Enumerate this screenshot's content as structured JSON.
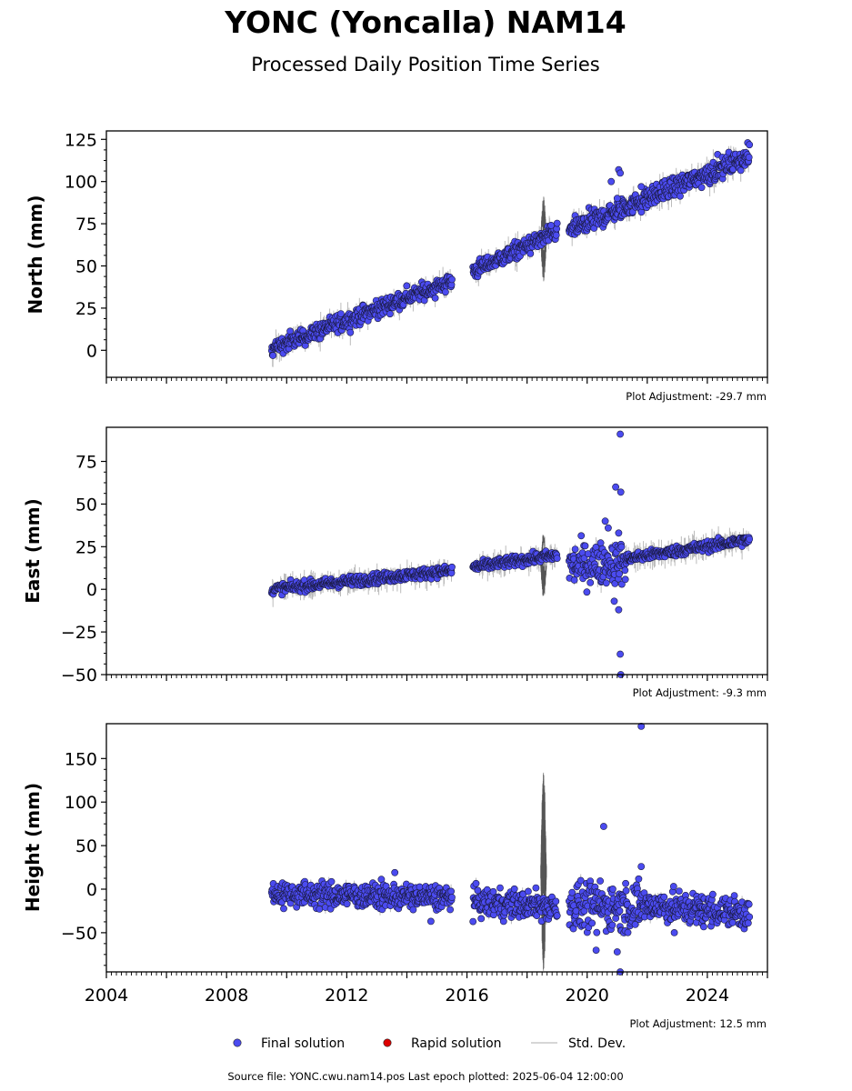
{
  "title": "YONC (Yoncalla) NAM14",
  "subtitle": "Processed Daily Position Time Series",
  "source_note": "Source file: YONC.cwu.nam14.pos  Last epoch plotted: 2025-06-04 12:00:00",
  "legend": {
    "final": "Final solution",
    "rapid": "Rapid solution",
    "std": "Std. Dev."
  },
  "colors": {
    "final": "#4b4bf0",
    "rapid": "#dd0000",
    "std": "#bbbbbb",
    "std_dark": "#555555"
  },
  "x_ticks": [
    "2004",
    "2008",
    "2012",
    "2016",
    "2020",
    "2024"
  ],
  "chart_data": [
    {
      "type": "scatter",
      "panel": "north",
      "ylabel": "North (mm)",
      "adjustment": "Plot Adjustment: -29.7 mm",
      "xlim": [
        2004,
        2026
      ],
      "ylim": [
        -16,
        130
      ],
      "y_ticks": [
        "0",
        "25",
        "50",
        "75",
        "100",
        "125"
      ],
      "y_tick_values": [
        0,
        25,
        50,
        75,
        100,
        125
      ],
      "segments": [
        {
          "x0": 2009.5,
          "x1": 2015.5,
          "y0": 1,
          "y1": 41,
          "spread": 2.5
        },
        {
          "x0": 2016.2,
          "x1": 2019.0,
          "y0": 47,
          "y1": 70,
          "spread": 2.5
        },
        {
          "x0": 2019.4,
          "x1": 2025.4,
          "y0": 71,
          "y1": 115,
          "spread": 3
        }
      ],
      "outliers": [
        [
          2021.05,
          107
        ],
        [
          2021.1,
          105
        ],
        [
          2021.8,
          97
        ],
        [
          2020.8,
          100
        ],
        [
          2021.0,
          90
        ],
        [
          2018.8,
          74
        ]
      ],
      "noisy_bands": [
        {
          "x0": 2018.45,
          "x1": 2018.65,
          "center": 66,
          "half": 26
        }
      ]
    },
    {
      "type": "scatter",
      "panel": "east",
      "ylabel": "East (mm)",
      "adjustment": "Plot Adjustment: -9.3 mm",
      "xlim": [
        2004,
        2026
      ],
      "ylim": [
        -50,
        95
      ],
      "y_ticks": [
        "75",
        "50",
        "25",
        "0",
        "−25",
        "−50"
      ],
      "y_tick_values": [
        75,
        50,
        25,
        0,
        -25,
        -50
      ],
      "segments": [
        {
          "x0": 2009.5,
          "x1": 2015.5,
          "y0": 0,
          "y1": 11,
          "spread": 1.5
        },
        {
          "x0": 2016.2,
          "x1": 2019.0,
          "y0": 13,
          "y1": 20,
          "spread": 1.5
        },
        {
          "x0": 2019.4,
          "x1": 2021.3,
          "y0": 14,
          "y1": 16,
          "spread": 6
        },
        {
          "x0": 2021.3,
          "x1": 2025.4,
          "y0": 18,
          "y1": 29,
          "spread": 1.5
        }
      ],
      "outliers": [
        [
          2021.1,
          91
        ],
        [
          2020.95,
          60
        ],
        [
          2021.12,
          57
        ],
        [
          2020.6,
          40
        ],
        [
          2020.7,
          36
        ],
        [
          2021.05,
          33
        ],
        [
          2020.9,
          -7
        ],
        [
          2021.05,
          -12
        ],
        [
          2021.1,
          -38
        ],
        [
          2021.12,
          -50
        ]
      ],
      "noisy_bands": [
        {
          "x0": 2018.45,
          "x1": 2018.65,
          "center": 14,
          "half": 20
        }
      ]
    },
    {
      "type": "scatter",
      "panel": "height",
      "ylabel": "Height (mm)",
      "adjustment": "Plot Adjustment: 12.5 mm",
      "xlim": [
        2004,
        2026
      ],
      "ylim": [
        -95,
        190
      ],
      "y_ticks": [
        "150",
        "100",
        "50",
        "0",
        "−50"
      ],
      "y_tick_values": [
        150,
        100,
        50,
        0,
        -50
      ],
      "segments": [
        {
          "x0": 2009.5,
          "x1": 2015.5,
          "y0": -5,
          "y1": -10,
          "spread": 7
        },
        {
          "x0": 2016.2,
          "x1": 2019.0,
          "y0": -15,
          "y1": -20,
          "spread": 8
        },
        {
          "x0": 2019.4,
          "x1": 2021.8,
          "y0": -20,
          "y1": -20,
          "spread": 14
        },
        {
          "x0": 2021.8,
          "x1": 2025.4,
          "y0": -18,
          "y1": -28,
          "spread": 9
        }
      ],
      "outliers": [
        [
          2021.8,
          187
        ],
        [
          2020.55,
          72
        ],
        [
          2021.8,
          26
        ],
        [
          2020.3,
          -70
        ],
        [
          2021.0,
          -72
        ],
        [
          2021.1,
          -95
        ],
        [
          2014.8,
          -37
        ],
        [
          2013.6,
          19
        ],
        [
          2022.9,
          -50
        ]
      ],
      "noisy_bands": [
        {
          "x0": 2018.45,
          "x1": 2018.65,
          "center": 20,
          "half": 120
        }
      ]
    }
  ]
}
